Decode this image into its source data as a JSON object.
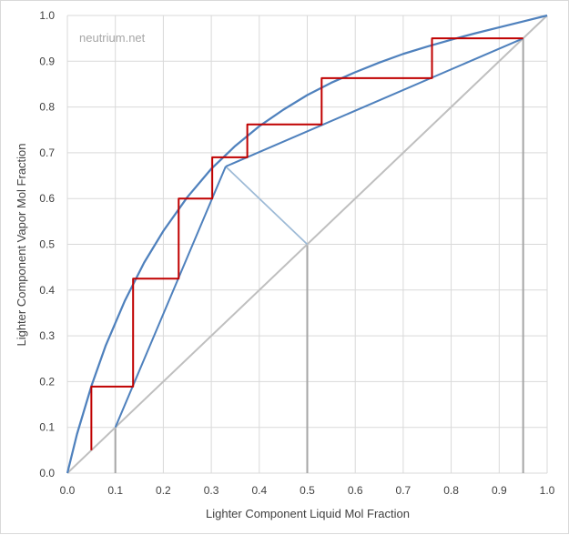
{
  "chart_data": {
    "type": "line",
    "title": "",
    "xlabel": "Lighter Component  Liquid Mol Fraction",
    "ylabel": "Lighter Component Vapor Mol Fraction",
    "xlim": [
      0,
      1
    ],
    "ylim": [
      0,
      1
    ],
    "x_ticks": [
      "0.0",
      "0.1",
      "0.2",
      "0.3",
      "0.4",
      "0.5",
      "0.6",
      "0.7",
      "0.8",
      "0.9",
      "1.0"
    ],
    "y_ticks": [
      "0.0",
      "0.1",
      "0.2",
      "0.3",
      "0.4",
      "0.5",
      "0.6",
      "0.7",
      "0.8",
      "0.9",
      "1.0"
    ],
    "grid": true,
    "watermark": "neutrium.net",
    "colors": {
      "equilibrium": "#4f81bd",
      "operating": "#4f81bd",
      "q_line": "#9dbad6",
      "diagonal": "#bfbfbf",
      "stages": "#c00000",
      "grid": "#d9d9d9"
    },
    "series": [
      {
        "key": "equilibrium",
        "x": [
          0,
          0.02,
          0.05,
          0.08,
          0.12,
          0.16,
          0.2,
          0.25,
          0.3,
          0.35,
          0.4,
          0.45,
          0.5,
          0.55,
          0.6,
          0.65,
          0.7,
          0.75,
          0.8,
          0.85,
          0.9,
          0.95,
          1.0
        ],
        "y": [
          0,
          0.085,
          0.19,
          0.279,
          0.377,
          0.46,
          0.529,
          0.603,
          0.665,
          0.715,
          0.758,
          0.794,
          0.826,
          0.853,
          0.876,
          0.897,
          0.916,
          0.932,
          0.947,
          0.961,
          0.974,
          0.987,
          1.0
        ]
      },
      {
        "key": "stripping-operating",
        "x": [
          0.1,
          0.33
        ],
        "y": [
          0.1,
          0.67
        ]
      },
      {
        "key": "rectifying-operating",
        "x": [
          0.33,
          0.95
        ],
        "y": [
          0.67,
          0.95
        ]
      },
      {
        "key": "q-line",
        "x": [
          0.5,
          0.33
        ],
        "y": [
          0.5,
          0.67
        ]
      },
      {
        "key": "diagonal",
        "x": [
          0,
          1
        ],
        "y": [
          0,
          1
        ]
      },
      {
        "key": "stages",
        "x": [
          0.95,
          0.76,
          0.76,
          0.53,
          0.53,
          0.375,
          0.375,
          0.302,
          0.302,
          0.232,
          0.232,
          0.137,
          0.137,
          0.05,
          0.05
        ],
        "y": [
          0.95,
          0.95,
          0.863,
          0.863,
          0.762,
          0.762,
          0.69,
          0.69,
          0.6,
          0.6,
          0.425,
          0.425,
          0.189,
          0.189,
          0.05
        ]
      }
    ],
    "marker_lines": [
      {
        "x": 0.1,
        "y_top": 0.1
      },
      {
        "x": 0.5,
        "y_top": 0.5
      },
      {
        "x": 0.95,
        "y_top": 0.95
      }
    ]
  }
}
